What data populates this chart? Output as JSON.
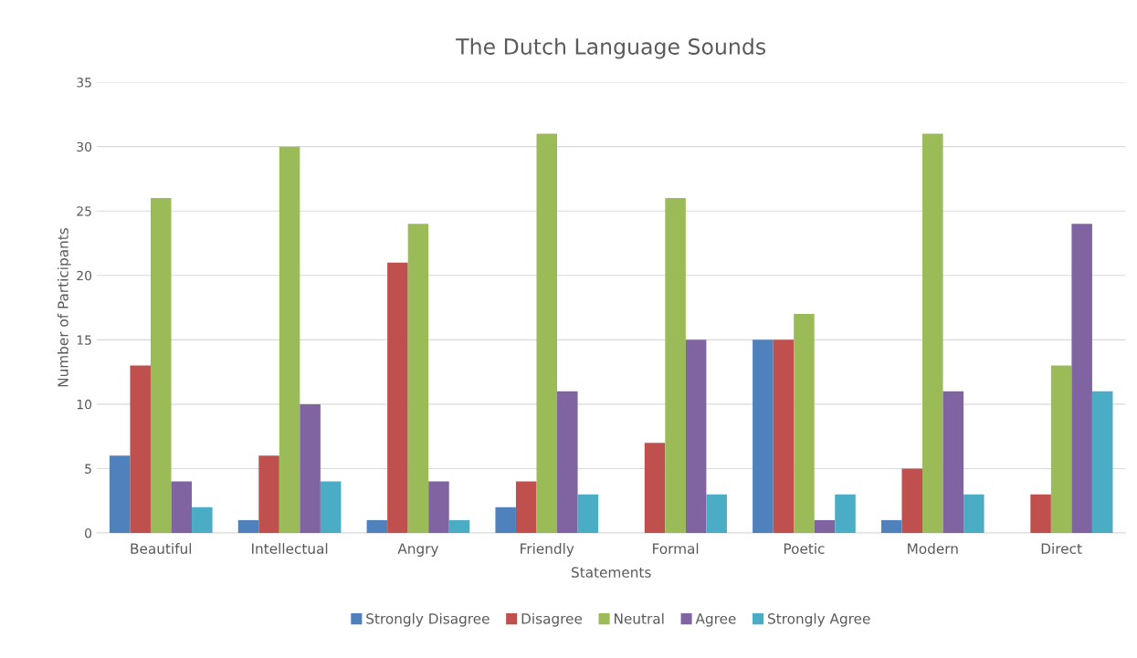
{
  "chart_data": {
    "type": "bar",
    "title": "The Dutch Language Sounds",
    "xlabel": "Statements",
    "ylabel": "Number of Participants",
    "categories": [
      "Beautiful",
      "Intellectual",
      "Angry",
      "Friendly",
      "Formal",
      "Poetic",
      "Modern",
      "Direct"
    ],
    "series": [
      {
        "name": "Strongly Disagree",
        "color": "#4f81bd",
        "values": [
          6,
          1,
          1,
          2,
          0,
          15,
          1,
          0
        ]
      },
      {
        "name": "Disagree",
        "color": "#c0504d",
        "values": [
          13,
          6,
          21,
          4,
          7,
          15,
          5,
          3
        ]
      },
      {
        "name": "Neutral",
        "color": "#9bbb59",
        "values": [
          26,
          30,
          24,
          31,
          26,
          17,
          31,
          13
        ]
      },
      {
        "name": "Agree",
        "color": "#8064a2",
        "values": [
          4,
          10,
          4,
          11,
          15,
          1,
          11,
          24
        ]
      },
      {
        "name": "Strongly Agree",
        "color": "#4bacc6",
        "values": [
          2,
          4,
          1,
          3,
          3,
          3,
          3,
          11
        ]
      }
    ],
    "ylim": [
      0,
      35
    ],
    "yticks": [
      0,
      5,
      10,
      15,
      20,
      25,
      30,
      35
    ],
    "grid": "y",
    "legend": "bottom"
  }
}
